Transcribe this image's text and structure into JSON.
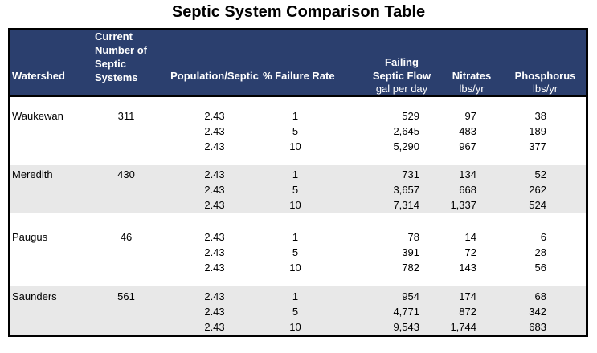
{
  "title": "Septic System Comparison Table",
  "colors": {
    "header_bg": "#2B3F6E",
    "header_text": "#FFFFFF",
    "row_band_gray": "#E8E8E8",
    "border": "#000000",
    "body_text": "#000000"
  },
  "header": {
    "columns": [
      {
        "id": "watershed",
        "lines": [
          "Watershed"
        ],
        "unit": ""
      },
      {
        "id": "current-number-of-septic-systems",
        "lines": [
          "Current",
          "Number of",
          "Septic",
          "Systems"
        ],
        "unit": ""
      },
      {
        "id": "population-septic",
        "lines": [
          "Population/Septic"
        ],
        "unit": ""
      },
      {
        "id": "failure-rate",
        "lines": [
          "% Failure Rate"
        ],
        "unit": ""
      },
      {
        "id": "failing-septic-flow",
        "lines": [
          "Failing",
          "Septic Flow"
        ],
        "unit": "gal per day"
      },
      {
        "id": "nitrates",
        "lines": [
          "Nitrates"
        ],
        "unit": "lbs/yr"
      },
      {
        "id": "phosphorus",
        "lines": [
          "Phosphorus"
        ],
        "unit": "lbs/yr"
      }
    ]
  },
  "groups": [
    {
      "watershed": "Waukewan",
      "systems": "311",
      "shade": "white",
      "rows": [
        [
          "2.43",
          "1",
          "529",
          "97",
          "38"
        ],
        [
          "2.43",
          "5",
          "2,645",
          "483",
          "189"
        ],
        [
          "2.43",
          "10",
          "5,290",
          "967",
          "377"
        ]
      ]
    },
    {
      "watershed": "Meredith",
      "systems": "430",
      "shade": "gray",
      "rows": [
        [
          "2.43",
          "1",
          "731",
          "134",
          "52"
        ],
        [
          "2.43",
          "5",
          "3,657",
          "668",
          "262"
        ],
        [
          "2.43",
          "10",
          "7,314",
          "1,337",
          "524"
        ]
      ]
    },
    {
      "watershed": "Paugus",
      "systems": "46",
      "shade": "white",
      "rows": [
        [
          "2.43",
          "1",
          "78",
          "14",
          "6"
        ],
        [
          "2.43",
          "5",
          "391",
          "72",
          "28"
        ],
        [
          "2.43",
          "10",
          "782",
          "143",
          "56"
        ]
      ]
    },
    {
      "watershed": "Saunders",
      "systems": "561",
      "shade": "gray",
      "rows": [
        [
          "2.43",
          "1",
          "954",
          "174",
          "68"
        ],
        [
          "2.43",
          "5",
          "4,771",
          "872",
          "342"
        ],
        [
          "2.43",
          "10",
          "9,543",
          "1,744",
          "683"
        ]
      ]
    }
  ],
  "chart_data": {
    "type": "table",
    "title": "Septic System Comparison Table",
    "columns": [
      "Watershed",
      "Current Number of Septic Systems",
      "Population/Septic",
      "% Failure Rate",
      "Failing Septic Flow gal per day",
      "Nitrates lbs/yr",
      "Phosphorus lbs/yr"
    ],
    "rows": [
      [
        "Waukewan",
        311,
        2.43,
        1,
        529,
        97,
        38
      ],
      [
        "Waukewan",
        311,
        2.43,
        5,
        2645,
        483,
        189
      ],
      [
        "Waukewan",
        311,
        2.43,
        10,
        5290,
        967,
        377
      ],
      [
        "Meredith",
        430,
        2.43,
        1,
        731,
        134,
        52
      ],
      [
        "Meredith",
        430,
        2.43,
        5,
        3657,
        668,
        262
      ],
      [
        "Meredith",
        430,
        2.43,
        10,
        7314,
        1337,
        524
      ],
      [
        "Paugus",
        46,
        2.43,
        1,
        78,
        14,
        6
      ],
      [
        "Paugus",
        46,
        2.43,
        5,
        391,
        72,
        28
      ],
      [
        "Paugus",
        46,
        2.43,
        10,
        782,
        143,
        56
      ],
      [
        "Saunders",
        561,
        2.43,
        1,
        954,
        174,
        68
      ],
      [
        "Saunders",
        561,
        2.43,
        5,
        4771,
        872,
        342
      ],
      [
        "Saunders",
        561,
        2.43,
        10,
        9543,
        1744,
        683
      ]
    ]
  }
}
